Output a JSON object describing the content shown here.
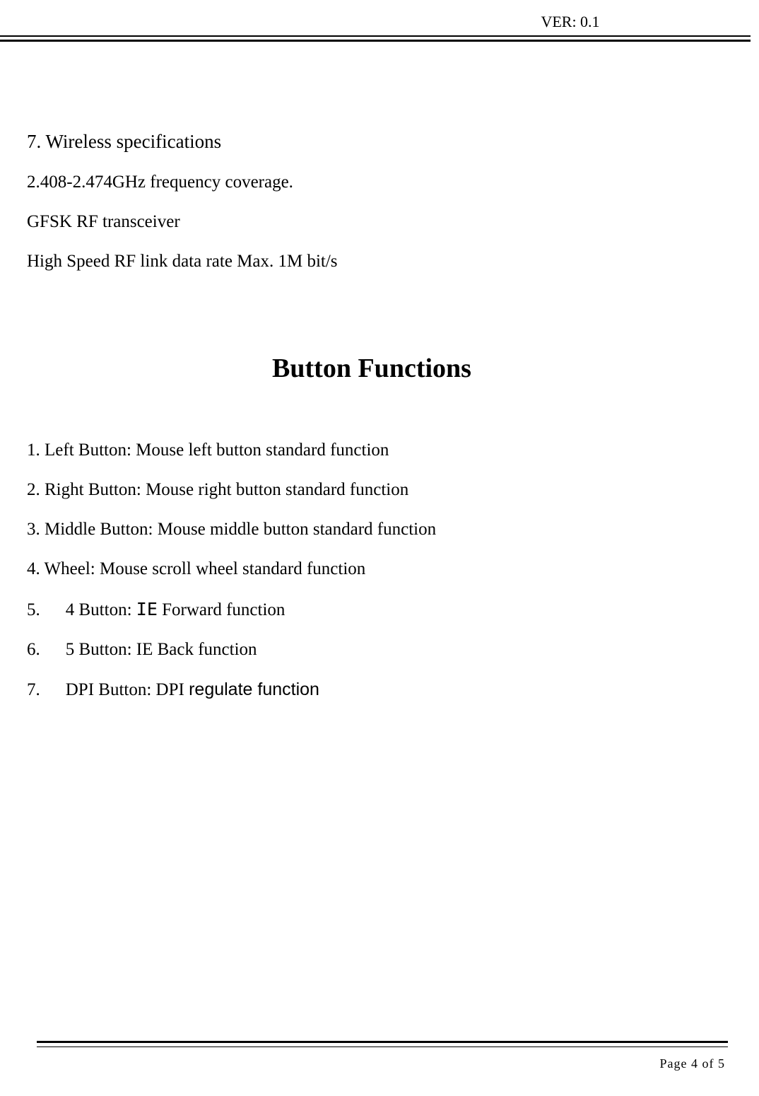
{
  "header": {
    "version": "VER: 0.1"
  },
  "section7": {
    "heading": "7. Wireless specifications",
    "spec1": "2.408-2.474GHz frequency coverage.",
    "spec2": "GFSK RF transceiver",
    "spec3": "High Speed RF link data rate Max. 1M bit/s"
  },
  "main_title": "Button Functions",
  "functions": {
    "f1": "1. Left Button: Mouse left button standard function",
    "f2": "2. Right Button: Mouse right button standard function",
    "f3": "3. Middle Button: Mouse middle button standard function",
    "f4": "4. Wheel: Mouse scroll wheel standard function",
    "f5_num": "5.",
    "f5_text_a": "4 Button:",
    "f5_ie": "IE",
    "f5_text_b": "Forward function",
    "f6_num": "6.",
    "f6_text": "5 Button: IE Back function",
    "f7_num": "7.",
    "f7_text_a": "DPI Button: DPI",
    "f7_text_b": "regulate function"
  },
  "footer": {
    "page": "Page 4 of 5"
  },
  "colors": {
    "text": "#000000",
    "background": "#ffffff",
    "rule": "#000000"
  },
  "typography": {
    "body_font": "Times New Roman",
    "body_size_pt": 25,
    "title_size_pt": 38,
    "header_size_pt": 22,
    "footer_size_pt": 18
  }
}
